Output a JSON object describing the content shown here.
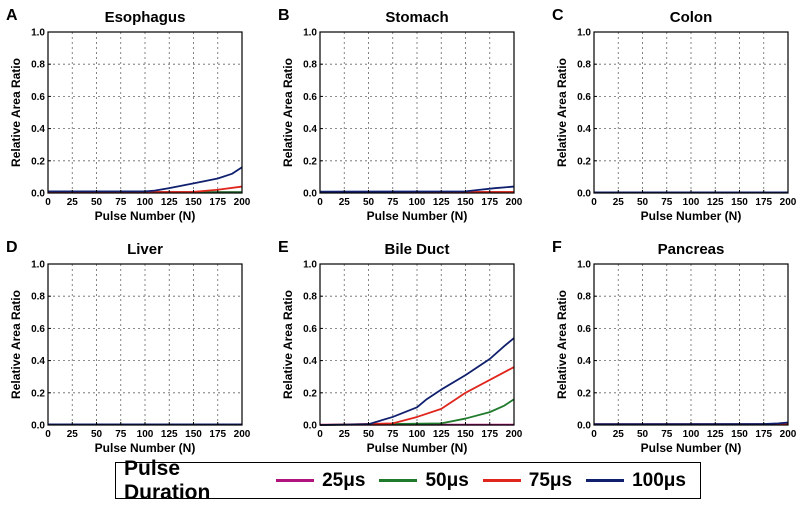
{
  "chart_data": [
    {
      "panel": "A",
      "title": "Esophagus",
      "type": "line",
      "xlabel": "Pulse Number (N)",
      "ylabel": "Relative Area Ratio",
      "xlim": [
        0,
        200
      ],
      "ylim": [
        0,
        1
      ],
      "series": [
        {
          "name": "25μs",
          "color": "#b0127e",
          "x": [
            0,
            200
          ],
          "y": [
            0.005,
            0.005
          ]
        },
        {
          "name": "50μs",
          "color": "#1f7a2c",
          "x": [
            0,
            200
          ],
          "y": [
            0.005,
            0.005
          ]
        },
        {
          "name": "75μs",
          "color": "#e0261c",
          "x": [
            0,
            150,
            175,
            200
          ],
          "y": [
            0.005,
            0.007,
            0.02,
            0.04
          ]
        },
        {
          "name": "100μs",
          "color": "#10206e",
          "x": [
            0,
            100,
            110,
            125,
            150,
            175,
            190,
            200
          ],
          "y": [
            0.01,
            0.01,
            0.015,
            0.03,
            0.06,
            0.09,
            0.12,
            0.16
          ]
        }
      ]
    },
    {
      "panel": "B",
      "title": "Stomach",
      "type": "line",
      "xlabel": "Pulse Number (N)",
      "ylabel": "Relative Area Ratio",
      "xlim": [
        0,
        200
      ],
      "ylim": [
        0,
        1
      ],
      "series": [
        {
          "name": "25μs",
          "color": "#b0127e",
          "x": [
            0,
            200
          ],
          "y": [
            0.005,
            0.005
          ]
        },
        {
          "name": "50μs",
          "color": "#1f7a2c",
          "x": [
            0,
            200
          ],
          "y": [
            0.005,
            0.005
          ]
        },
        {
          "name": "75μs",
          "color": "#e0261c",
          "x": [
            0,
            200
          ],
          "y": [
            0.006,
            0.006
          ]
        },
        {
          "name": "100μs",
          "color": "#10206e",
          "x": [
            0,
            150,
            165,
            180,
            200
          ],
          "y": [
            0.008,
            0.01,
            0.02,
            0.03,
            0.04
          ]
        }
      ]
    },
    {
      "panel": "C",
      "title": "Colon",
      "type": "line",
      "xlabel": "Pulse Number (N)",
      "ylabel": "Relative Area Ratio",
      "xlim": [
        0,
        200
      ],
      "ylim": [
        0,
        1
      ],
      "series": [
        {
          "name": "25μs",
          "color": "#b0127e",
          "x": [
            0,
            200
          ],
          "y": [
            0.003,
            0.003
          ]
        },
        {
          "name": "50μs",
          "color": "#1f7a2c",
          "x": [
            0,
            200
          ],
          "y": [
            0.003,
            0.003
          ]
        },
        {
          "name": "75μs",
          "color": "#e0261c",
          "x": [
            0,
            200
          ],
          "y": [
            0.004,
            0.004
          ]
        },
        {
          "name": "100μs",
          "color": "#10206e",
          "x": [
            0,
            200
          ],
          "y": [
            0.004,
            0.004
          ]
        }
      ]
    },
    {
      "panel": "D",
      "title": "Liver",
      "type": "line",
      "xlabel": "Pulse Number (N)",
      "ylabel": "Relative Area Ratio",
      "xlim": [
        0,
        200
      ],
      "ylim": [
        0,
        1
      ],
      "series": [
        {
          "name": "25μs",
          "color": "#b0127e",
          "x": [
            0,
            200
          ],
          "y": [
            0.003,
            0.003
          ]
        },
        {
          "name": "50μs",
          "color": "#1f7a2c",
          "x": [
            0,
            200
          ],
          "y": [
            0.003,
            0.003
          ]
        },
        {
          "name": "75μs",
          "color": "#e0261c",
          "x": [
            0,
            200
          ],
          "y": [
            0.004,
            0.004
          ]
        },
        {
          "name": "100μs",
          "color": "#10206e",
          "x": [
            0,
            200
          ],
          "y": [
            0.004,
            0.004
          ]
        }
      ]
    },
    {
      "panel": "E",
      "title": "Bile Duct",
      "type": "line",
      "xlabel": "Pulse Number (N)",
      "ylabel": "Relative Area Ratio",
      "xlim": [
        0,
        200
      ],
      "ylim": [
        0,
        1
      ],
      "series": [
        {
          "name": "25μs",
          "color": "#b0127e",
          "x": [
            0,
            200
          ],
          "y": [
            0.002,
            0.002
          ]
        },
        {
          "name": "50μs",
          "color": "#1f7a2c",
          "x": [
            0,
            125,
            150,
            175,
            190,
            200
          ],
          "y": [
            0,
            0.01,
            0.04,
            0.08,
            0.12,
            0.16
          ]
        },
        {
          "name": "75μs",
          "color": "#e0261c",
          "x": [
            0,
            75,
            100,
            125,
            140,
            150,
            175,
            200
          ],
          "y": [
            0,
            0.01,
            0.05,
            0.1,
            0.16,
            0.2,
            0.28,
            0.36
          ]
        },
        {
          "name": "100μs",
          "color": "#10206e",
          "x": [
            0,
            50,
            75,
            100,
            110,
            125,
            150,
            175,
            190,
            200
          ],
          "y": [
            0,
            0.005,
            0.05,
            0.11,
            0.16,
            0.22,
            0.31,
            0.41,
            0.49,
            0.54
          ]
        }
      ]
    },
    {
      "panel": "F",
      "title": "Pancreas",
      "type": "line",
      "xlabel": "Pulse Number (N)",
      "ylabel": "Relative Area Ratio",
      "xlim": [
        0,
        200
      ],
      "ylim": [
        0,
        1
      ],
      "series": [
        {
          "name": "25μs",
          "color": "#b0127e",
          "x": [
            0,
            200
          ],
          "y": [
            0.004,
            0.004
          ]
        },
        {
          "name": "50μs",
          "color": "#1f7a2c",
          "x": [
            0,
            200
          ],
          "y": [
            0.004,
            0.004
          ]
        },
        {
          "name": "75μs",
          "color": "#e0261c",
          "x": [
            0,
            200
          ],
          "y": [
            0.005,
            0.005
          ]
        },
        {
          "name": "100μs",
          "color": "#10206e",
          "x": [
            0,
            175,
            190,
            200
          ],
          "y": [
            0.005,
            0.006,
            0.01,
            0.015
          ]
        }
      ]
    }
  ],
  "xticks": [
    "0",
    "25",
    "50",
    "75",
    "100",
    "125",
    "150",
    "175",
    "200"
  ],
  "yticks": [
    "0.0",
    "0.2",
    "0.4",
    "0.6",
    "0.8",
    "1.0"
  ],
  "legend": {
    "title": "Pulse Duration",
    "items": [
      {
        "label": "25μs",
        "color": "#b0127e"
      },
      {
        "label": "50μs",
        "color": "#1f7a2c"
      },
      {
        "label": "75μs",
        "color": "#e0261c"
      },
      {
        "label": "100μs",
        "color": "#10206e"
      }
    ]
  }
}
